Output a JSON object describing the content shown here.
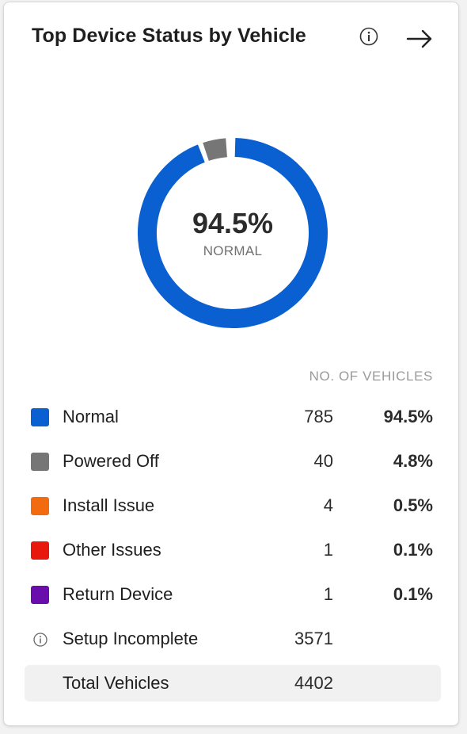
{
  "header": {
    "title": "Top Device Status by Vehicle"
  },
  "chart_data": {
    "type": "pie",
    "center_value": "94.5%",
    "center_label": "NORMAL",
    "series": [
      {
        "name": "Normal",
        "value": 785,
        "percent": 94.5,
        "color": "#0a5fd1"
      },
      {
        "name": "Powered Off",
        "value": 40,
        "percent": 4.8,
        "color": "#767676"
      },
      {
        "name": "Install Issue",
        "value": 4,
        "percent": 0.5,
        "color": "#f26b0f"
      },
      {
        "name": "Other Issues",
        "value": 1,
        "percent": 0.1,
        "color": "#e8180c"
      },
      {
        "name": "Return Device",
        "value": 1,
        "percent": 0.1,
        "color": "#6a0dad"
      }
    ]
  },
  "table": {
    "column_header": "NO. OF VEHICLES",
    "rows": [
      {
        "label": "Normal",
        "count": "785",
        "pct": "94.5%",
        "color": "#0a5fd1"
      },
      {
        "label": "Powered Off",
        "count": "40",
        "pct": "4.8%",
        "color": "#767676"
      },
      {
        "label": "Install Issue",
        "count": "4",
        "pct": "0.5%",
        "color": "#f26b0f"
      },
      {
        "label": "Other Issues",
        "count": "1",
        "pct": "0.1%",
        "color": "#e8180c"
      },
      {
        "label": "Return Device",
        "count": "1",
        "pct": "0.1%",
        "color": "#6a0dad"
      }
    ],
    "setup": {
      "label": "Setup Incomplete",
      "count": "3571",
      "icon": "info-icon"
    },
    "total": {
      "label": "Total Vehicles",
      "count": "4402"
    }
  }
}
